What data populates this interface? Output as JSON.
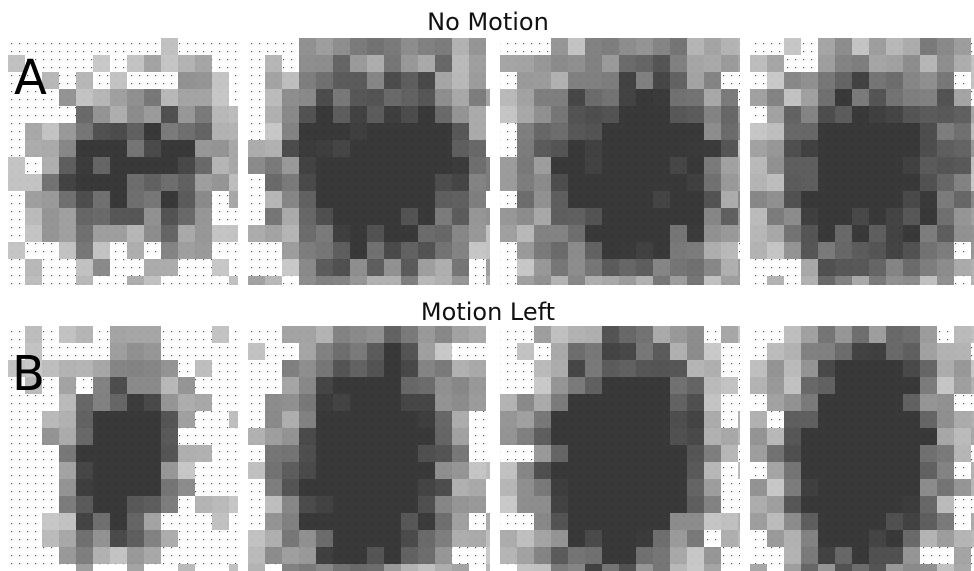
{
  "figure": {
    "rows": [
      {
        "letter": "A",
        "title": "No Motion"
      },
      {
        "letter": "B",
        "title": "Motion Left"
      }
    ]
  }
}
